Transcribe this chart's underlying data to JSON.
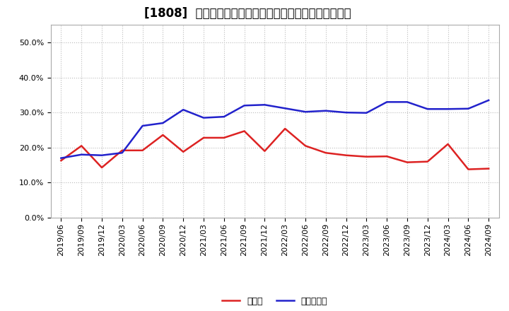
{
  "title": "[1808]  現預金、有利子負債の総資産に対する比率の推移",
  "x_labels": [
    "2019/06",
    "2019/09",
    "2019/12",
    "2020/03",
    "2020/06",
    "2020/09",
    "2020/12",
    "2021/03",
    "2021/06",
    "2021/09",
    "2021/12",
    "2022/03",
    "2022/06",
    "2022/09",
    "2022/12",
    "2023/03",
    "2023/06",
    "2023/09",
    "2023/12",
    "2024/03",
    "2024/06",
    "2024/09"
  ],
  "cash": [
    0.163,
    0.205,
    0.143,
    0.192,
    0.192,
    0.236,
    0.188,
    0.228,
    0.228,
    0.247,
    0.19,
    0.254,
    0.205,
    0.185,
    0.178,
    0.174,
    0.175,
    0.158,
    0.16,
    0.21,
    0.138,
    0.14
  ],
  "debt": [
    0.17,
    0.18,
    0.178,
    0.185,
    0.262,
    0.27,
    0.308,
    0.285,
    0.288,
    0.32,
    0.322,
    0.312,
    0.302,
    0.305,
    0.3,
    0.299,
    0.33,
    0.33,
    0.31,
    0.31,
    0.311,
    0.335
  ],
  "cash_color": "#dd2222",
  "debt_color": "#2222cc",
  "bg_color": "#ffffff",
  "plot_bg_color": "#ffffff",
  "grid_color": "#bbbbbb",
  "legend_cash": "現預金",
  "legend_debt": "有利子負債",
  "ylim": [
    0.0,
    0.55
  ],
  "yticks": [
    0.0,
    0.1,
    0.2,
    0.3,
    0.4,
    0.5
  ],
  "title_fontsize": 12,
  "tick_fontsize": 8,
  "legend_fontsize": 9,
  "linewidth": 1.8
}
